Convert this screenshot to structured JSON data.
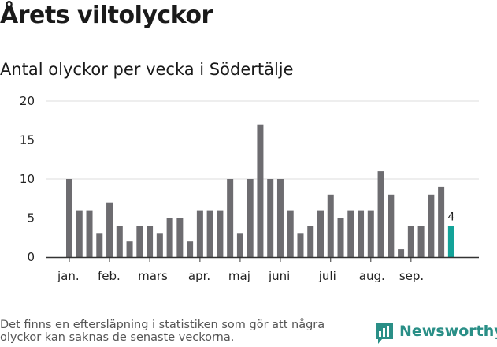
{
  "title": "Årets viltolyckor",
  "subtitle": "Antal olyckor per vecka i Södertälje",
  "footnote": "Det finns en eftersläpning i statistiken som gör att några olyckor kan saknas de senaste veckorna.",
  "brand": {
    "name": "Newsworthy",
    "icon": "newsworthy-logo-icon",
    "color": "#2a8f87"
  },
  "colors": {
    "bar": "#6d6c70",
    "highlight": "#13a399",
    "grid": "#dddddd",
    "axis": "#333333"
  },
  "chart_data": {
    "type": "bar",
    "title": "Antal olyckor per vecka i Södertälje",
    "xlabel": "",
    "ylabel": "",
    "ylim": [
      0,
      20
    ],
    "yticks": [
      0,
      5,
      10,
      15,
      20
    ],
    "grid": true,
    "values": [
      10,
      6,
      6,
      3,
      7,
      4,
      2,
      4,
      4,
      3,
      5,
      5,
      2,
      6,
      6,
      6,
      10,
      3,
      10,
      17,
      10,
      10,
      6,
      3,
      4,
      6,
      8,
      5,
      6,
      6,
      6,
      11,
      8,
      1,
      4,
      4,
      8,
      9,
      4
    ],
    "highlight_index": 38,
    "highlight_label": "4",
    "months": [
      {
        "label": "jan.",
        "week_index": 0
      },
      {
        "label": "feb.",
        "week_index": 4
      },
      {
        "label": "mars",
        "week_index": 8
      },
      {
        "label": "apr.",
        "week_index": 13
      },
      {
        "label": "maj",
        "week_index": 17
      },
      {
        "label": "juni",
        "week_index": 21
      },
      {
        "label": "juli",
        "week_index": 26
      },
      {
        "label": "aug.",
        "week_index": 30
      },
      {
        "label": "sep.",
        "week_index": 34
      }
    ]
  }
}
